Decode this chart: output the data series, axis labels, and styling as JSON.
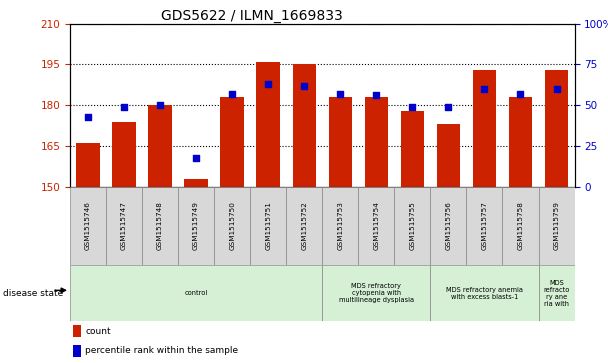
{
  "title": "GDS5622 / ILMN_1669833",
  "samples": [
    "GSM1515746",
    "GSM1515747",
    "GSM1515748",
    "GSM1515749",
    "GSM1515750",
    "GSM1515751",
    "GSM1515752",
    "GSM1515753",
    "GSM1515754",
    "GSM1515755",
    "GSM1515756",
    "GSM1515757",
    "GSM1515758",
    "GSM1515759"
  ],
  "counts": [
    166,
    174,
    180,
    153,
    183,
    196,
    195,
    183,
    183,
    178,
    173,
    193,
    183,
    193
  ],
  "percentile_ranks": [
    43,
    49,
    50,
    18,
    57,
    63,
    62,
    57,
    56,
    49,
    49,
    60,
    57,
    60
  ],
  "y_min": 150,
  "y_max": 210,
  "y_ticks": [
    150,
    165,
    180,
    195,
    210
  ],
  "y_right_ticks": [
    0,
    25,
    50,
    75,
    100
  ],
  "bar_color": "#cc2200",
  "dot_color": "#0000cc",
  "background_color": "#ffffff",
  "grid_color": "#000000",
  "tick_label_color_left": "#cc2200",
  "tick_label_color_right": "#0000cc",
  "disease_groups": [
    {
      "label": "control",
      "start": 0,
      "end": 7,
      "color": "#d5f0d5"
    },
    {
      "label": "MDS refractory\ncytopenia with\nmultilineage dysplasia",
      "start": 7,
      "end": 10,
      "color": "#d5f0d5"
    },
    {
      "label": "MDS refractory anemia\nwith excess blasts-1",
      "start": 10,
      "end": 13,
      "color": "#d5f0d5"
    },
    {
      "label": "MDS\nrefracto\nry ane\nria with",
      "start": 13,
      "end": 14,
      "color": "#d5f0d5"
    }
  ],
  "legend_count_label": "count",
  "legend_percentile_label": "percentile rank within the sample",
  "disease_state_label": "disease state",
  "sample_box_color": "#d8d8d8",
  "dot_size": 18
}
